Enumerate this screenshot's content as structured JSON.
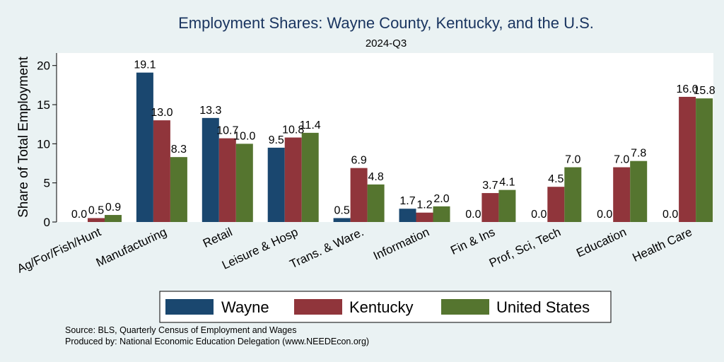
{
  "chart_data": {
    "type": "bar",
    "title": "Employment Shares: Wayne County, Kentucky, and the U.S.",
    "subtitle": "2024-Q3",
    "ylabel": "Share of Total Employment",
    "xlabel": "",
    "ylim": [
      0,
      21.6
    ],
    "yticks": [
      0,
      5,
      10,
      15,
      20
    ],
    "categories": [
      "Ag/For/Fish/Hunt",
      "Manufacturing",
      "Retail",
      "Leisure & Hosp",
      "Trans. & Ware.",
      "Information",
      "Fin & Ins",
      "Prof, Sci, Tech",
      "Education",
      "Health Care"
    ],
    "series": [
      {
        "name": "Wayne",
        "color": "#1a476f",
        "values": [
          0.0,
          19.1,
          13.3,
          9.5,
          0.5,
          1.7,
          0.0,
          0.0,
          0.0,
          0.0
        ]
      },
      {
        "name": "Kentucky",
        "color": "#90353b",
        "values": [
          0.5,
          13.0,
          10.7,
          10.8,
          6.9,
          1.2,
          3.7,
          4.5,
          7.0,
          16.0
        ]
      },
      {
        "name": "United States",
        "color": "#55752f",
        "values": [
          0.9,
          8.3,
          10.0,
          11.4,
          4.8,
          2.0,
          4.1,
          7.0,
          7.8,
          15.8
        ]
      }
    ],
    "legend": "bottom",
    "grid": false
  },
  "notes": {
    "source": "Source: BLS, Quarterly Census of Employment and Wages",
    "produced": "Produced by: National Economic Education Delegation (www.NEEDEcon.org)"
  }
}
